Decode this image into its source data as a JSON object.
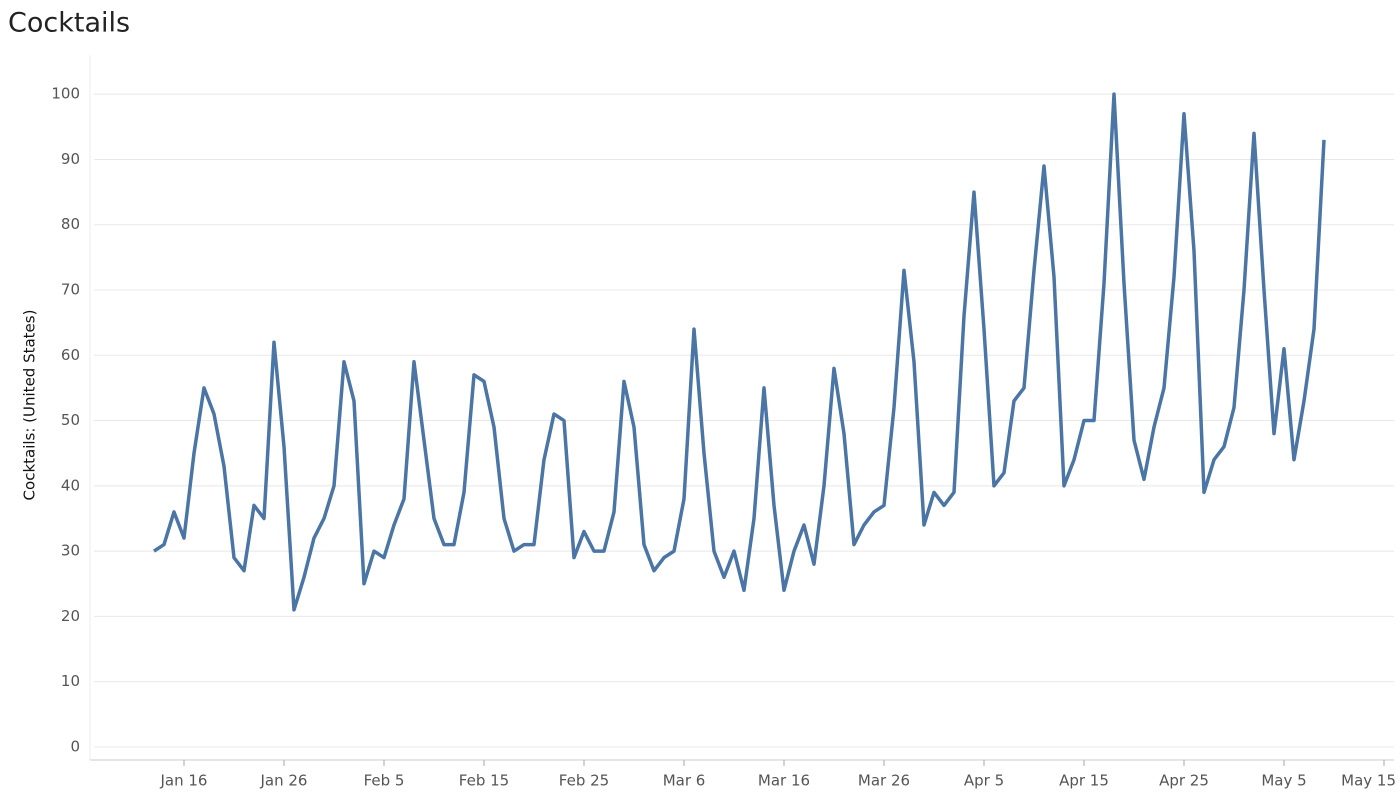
{
  "chart_data": {
    "type": "line",
    "title": "Cocktails",
    "y_label": "Cocktails: (United States)",
    "x": [
      "Jan 13",
      "Jan 14",
      "Jan 15",
      "Jan 16",
      "Jan 17",
      "Jan 18",
      "Jan 19",
      "Jan 20",
      "Jan 21",
      "Jan 22",
      "Jan 23",
      "Jan 24",
      "Jan 25",
      "Jan 26",
      "Jan 27",
      "Jan 28",
      "Jan 29",
      "Jan 30",
      "Jan 31",
      "Feb 1",
      "Feb 2",
      "Feb 3",
      "Feb 4",
      "Feb 5",
      "Feb 6",
      "Feb 7",
      "Feb 8",
      "Feb 9",
      "Feb 10",
      "Feb 11",
      "Feb 12",
      "Feb 13",
      "Feb 14",
      "Feb 15",
      "Feb 16",
      "Feb 17",
      "Feb 18",
      "Feb 19",
      "Feb 20",
      "Feb 21",
      "Feb 22",
      "Feb 23",
      "Feb 24",
      "Feb 25",
      "Feb 26",
      "Feb 27",
      "Feb 28",
      "Feb 29",
      "Mar 1",
      "Mar 2",
      "Mar 3",
      "Mar 4",
      "Mar 5",
      "Mar 6",
      "Mar 7",
      "Mar 8",
      "Mar 9",
      "Mar 10",
      "Mar 11",
      "Mar 12",
      "Mar 13",
      "Mar 14",
      "Mar 15",
      "Mar 16",
      "Mar 17",
      "Mar 18",
      "Mar 19",
      "Mar 20",
      "Mar 21",
      "Mar 22",
      "Mar 23",
      "Mar 24",
      "Mar 25",
      "Mar 26",
      "Mar 27",
      "Mar 28",
      "Mar 29",
      "Mar 30",
      "Mar 31",
      "Apr 1",
      "Apr 2",
      "Apr 3",
      "Apr 4",
      "Apr 5",
      "Apr 6",
      "Apr 7",
      "Apr 8",
      "Apr 9",
      "Apr 10",
      "Apr 11",
      "Apr 12",
      "Apr 13",
      "Apr 14",
      "Apr 15",
      "Apr 16",
      "Apr 17",
      "Apr 18",
      "Apr 19",
      "Apr 20",
      "Apr 21",
      "Apr 22",
      "Apr 23",
      "Apr 24",
      "Apr 25",
      "Apr 26",
      "Apr 27",
      "Apr 28",
      "Apr 29",
      "Apr 30",
      "May 1",
      "May 2",
      "May 3",
      "May 4",
      "May 5",
      "May 6",
      "May 7",
      "May 8",
      "May 9"
    ],
    "series": [
      {
        "name": "Cocktails",
        "color": "#4a75a5",
        "values": [
          30,
          31,
          36,
          32,
          45,
          55,
          51,
          43,
          29,
          27,
          37,
          35,
          62,
          46,
          21,
          26,
          32,
          35,
          40,
          59,
          53,
          25,
          30,
          29,
          34,
          38,
          59,
          47,
          35,
          31,
          31,
          39,
          57,
          56,
          49,
          35,
          30,
          31,
          31,
          44,
          51,
          50,
          29,
          33,
          30,
          30,
          36,
          56,
          49,
          31,
          27,
          29,
          30,
          38,
          64,
          45,
          30,
          26,
          30,
          24,
          35,
          55,
          37,
          24,
          30,
          34,
          28,
          40,
          58,
          48,
          31,
          34,
          36,
          37,
          52,
          73,
          59,
          34,
          39,
          37,
          39,
          66,
          85,
          64,
          40,
          42,
          53,
          55,
          73,
          89,
          72,
          40,
          44,
          50,
          50,
          71,
          100,
          71,
          47,
          41,
          49,
          55,
          72,
          97,
          76,
          39,
          44,
          46,
          52,
          70,
          94,
          70,
          48,
          61,
          44,
          53,
          64,
          93
        ]
      }
    ],
    "xlim": [
      "Jan 7",
      "May 16"
    ],
    "xticks": [
      "Jan 16",
      "Jan 26",
      "Feb 5",
      "Feb 15",
      "Feb 25",
      "Mar 6",
      "Mar 16",
      "Mar 26",
      "Apr 5",
      "Apr 15",
      "Apr 25",
      "May 5",
      "May 15"
    ],
    "ylim": [
      -2,
      106
    ],
    "yticks": [
      0,
      10,
      20,
      30,
      40,
      50,
      60,
      70,
      80,
      90,
      100
    ],
    "grid": true
  }
}
